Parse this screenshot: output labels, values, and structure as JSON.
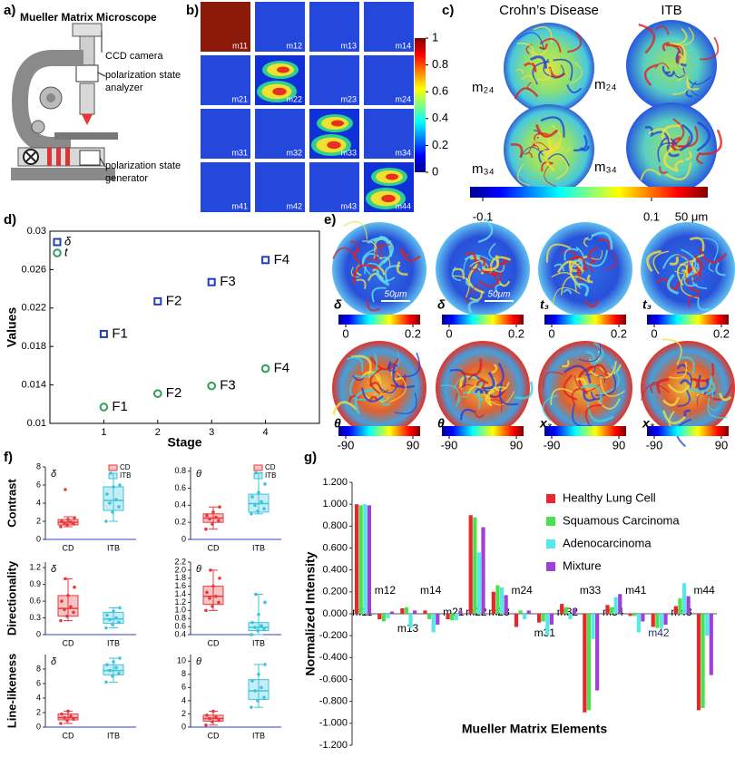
{
  "panel_labels": [
    "a)",
    "b)",
    "c)",
    "d)",
    "e)",
    "f)",
    "g)"
  ],
  "microscope": {
    "title": "Mueller Matrix Microscope",
    "labels": [
      "CCD camera",
      "polarization state",
      "analyzer",
      "polarization state",
      "generator"
    ]
  },
  "mueller_images": {
    "elements": [
      "m11",
      "m12",
      "m13",
      "m14",
      "m21",
      "m22",
      "m23",
      "m24",
      "m31",
      "m32",
      "m33",
      "m34",
      "m41",
      "m42",
      "m43",
      "m44"
    ],
    "colorbar_ticks": [
      0,
      0.2,
      0.4,
      0.6,
      0.8,
      1
    ]
  },
  "comparison": {
    "columns": [
      "Crohn’s Disease",
      "ITB"
    ],
    "rows": [
      "m₂₄",
      "m₃₄"
    ],
    "colorbar_ticks": [
      -0.1,
      0.1
    ],
    "scale_bar": "50 μm"
  },
  "parameter_maps": {
    "labels": [
      "δ",
      "δ",
      "t₃",
      "t₃",
      "θ",
      "θ",
      "x₃",
      "x₃"
    ],
    "colorbar_ticks": [
      [
        0,
        0.2
      ],
      [
        -90,
        90
      ]
    ],
    "scale_labels": [
      "50μm",
      "50μm"
    ]
  },
  "chart_data": [
    {
      "type": "scatter",
      "xlabel": "Stage",
      "ylabel": "Values",
      "x": [
        1,
        2,
        3,
        4
      ],
      "xlim": [
        0,
        5
      ],
      "xticks": [
        1,
        2,
        3,
        4
      ],
      "ylim": [
        0.01,
        0.03
      ],
      "yticks": [
        0.01,
        0.014,
        0.018,
        0.022,
        0.026,
        0.03
      ],
      "legend": "upper left",
      "series": [
        {
          "name": "δ",
          "color": "#1f3fbf",
          "marker": "square",
          "values": [
            0.0193,
            0.0227,
            0.0247,
            0.027
          ],
          "point_labels": [
            "F1",
            "F2",
            "F3",
            "F4"
          ]
        },
        {
          "name": "t",
          "color": "#2e9e5b",
          "marker": "circle",
          "values": [
            0.0117,
            0.0131,
            0.0139,
            0.0157
          ],
          "point_labels": [
            "F1",
            "F2",
            "F3",
            "F4"
          ]
        }
      ]
    },
    {
      "type": "box",
      "title": "δ",
      "ylabel": "Contrast",
      "categories": [
        "CD",
        "ITB"
      ],
      "legend": [
        "CD",
        "ITB"
      ],
      "colors": [
        "#e8383d",
        "#3cc3dd"
      ],
      "ylim": [
        0,
        8
      ],
      "yticks": [
        0,
        2,
        4,
        6,
        8
      ],
      "boxes": [
        {
          "whisker_low": 1.4,
          "q1": 1.6,
          "median": 1.9,
          "q3": 2.2,
          "whisker_high": 2.5,
          "points": [
            1.4,
            1.6,
            1.7,
            1.8,
            1.9,
            2.0,
            2.2,
            2.4,
            5.5
          ]
        },
        {
          "whisker_low": 2.0,
          "q1": 3.2,
          "median": 4.3,
          "q3": 5.8,
          "whisker_high": 7.3,
          "points": [
            2.0,
            3.0,
            3.6,
            4.0,
            4.4,
            5.0,
            5.8,
            6.0,
            7.3
          ]
        }
      ]
    },
    {
      "type": "box",
      "title": "θ",
      "categories": [
        "CD",
        "ITB"
      ],
      "legend": [
        "CD",
        "ITB"
      ],
      "colors": [
        "#e8383d",
        "#3cc3dd"
      ],
      "ylim": [
        0,
        0.85
      ],
      "yticks": [
        0,
        0.2,
        0.4,
        0.6,
        0.8
      ],
      "boxes": [
        {
          "whisker_low": 0.12,
          "q1": 0.2,
          "median": 0.25,
          "q3": 0.3,
          "whisker_high": 0.38,
          "points": [
            0.12,
            0.18,
            0.22,
            0.24,
            0.26,
            0.28,
            0.32,
            0.38
          ]
        },
        {
          "whisker_low": 0.3,
          "q1": 0.32,
          "median": 0.42,
          "q3": 0.53,
          "whisker_high": 0.78,
          "points": [
            0.3,
            0.33,
            0.36,
            0.4,
            0.44,
            0.5,
            0.55,
            0.65,
            0.78
          ]
        }
      ]
    },
    {
      "type": "box",
      "title": "δ",
      "ylabel": "Directionality",
      "categories": [
        "CD",
        "ITB"
      ],
      "colors": [
        "#e8383d",
        "#3cc3dd"
      ],
      "ylim": [
        0,
        1.3
      ],
      "yticks": [
        0,
        0.3,
        0.6,
        0.9,
        1.2
      ],
      "boxes": [
        {
          "whisker_low": 0.25,
          "q1": 0.33,
          "median": 0.47,
          "q3": 0.7,
          "whisker_high": 1.0,
          "points": [
            0.25,
            0.33,
            0.4,
            0.45,
            0.5,
            0.6,
            0.7,
            0.85,
            1.0
          ]
        },
        {
          "whisker_low": 0.12,
          "q1": 0.2,
          "median": 0.28,
          "q3": 0.4,
          "whisker_high": 0.48,
          "points": [
            0.12,
            0.18,
            0.22,
            0.27,
            0.3,
            0.35,
            0.42,
            0.48
          ]
        }
      ]
    },
    {
      "type": "box",
      "title": "θ",
      "categories": [
        "CD",
        "ITB"
      ],
      "colors": [
        "#e8383d",
        "#3cc3dd"
      ],
      "ylim": [
        0.4,
        2.2
      ],
      "yticks": [
        0.4,
        0.6,
        0.8,
        {
          "value": 1,
          "label": "1.0"
        },
        1.2,
        1.4,
        1.6,
        1.8,
        {
          "value": 2,
          "label": "2.0"
        },
        2.2
      ],
      "boxes": [
        {
          "whisker_low": 1.0,
          "q1": 1.15,
          "median": 1.35,
          "q3": 1.6,
          "whisker_high": 2.0,
          "points": [
            1.0,
            1.1,
            1.2,
            1.3,
            1.35,
            1.45,
            1.6,
            1.8,
            2.0
          ]
        },
        {
          "whisker_low": 0.4,
          "q1": 0.5,
          "median": 0.58,
          "q3": 0.7,
          "whisker_high": 1.4,
          "points": [
            0.4,
            0.5,
            0.55,
            0.58,
            0.62,
            0.7,
            0.9,
            1.2,
            1.4
          ]
        }
      ]
    },
    {
      "type": "box",
      "title": "δ",
      "ylabel": "Line-likeness",
      "categories": [
        "CD",
        "ITB"
      ],
      "colors": [
        "#e8383d",
        "#3cc3dd"
      ],
      "ylim": [
        0,
        10
      ],
      "yticks": [
        0,
        2,
        4,
        6,
        8
      ],
      "boxes": [
        {
          "whisker_low": 0.5,
          "q1": 1.0,
          "median": 1.3,
          "q3": 1.8,
          "whisker_high": 2.2,
          "points": [
            0.5,
            0.9,
            1.1,
            1.3,
            1.5,
            1.8,
            2.2
          ]
        },
        {
          "whisker_low": 6.2,
          "q1": 7.2,
          "median": 7.8,
          "q3": 8.6,
          "whisker_high": 9.5,
          "points": [
            6.2,
            7.0,
            7.4,
            7.8,
            8.2,
            8.6,
            9.0,
            9.5
          ]
        }
      ]
    },
    {
      "type": "box",
      "title": "θ",
      "categories": [
        "CD",
        "ITB"
      ],
      "colors": [
        "#e8383d",
        "#3cc3dd"
      ],
      "ylim": [
        0,
        11
      ],
      "yticks": [
        0,
        2,
        4,
        6,
        8,
        10
      ],
      "boxes": [
        {
          "whisker_low": 0.3,
          "q1": 0.9,
          "median": 1.3,
          "q3": 1.8,
          "whisker_high": 2.4,
          "points": [
            0.3,
            0.8,
            1.0,
            1.3,
            1.5,
            1.8,
            2.4
          ]
        },
        {
          "whisker_low": 3.0,
          "q1": 4.2,
          "median": 5.5,
          "q3": 7.2,
          "whisker_high": 9.5,
          "points": [
            3.0,
            4.0,
            4.5,
            5.5,
            6.0,
            7.0,
            8.0,
            9.5
          ]
        }
      ]
    },
    {
      "type": "bar",
      "ylabel": "Normalized Intensity",
      "xlabel": "Mueller Matrix Elements",
      "categories": [
        "m11",
        "m12",
        "m13",
        "m14",
        "m21",
        "m22",
        "m23",
        "m24",
        "m31",
        "m32",
        "m33",
        "m34",
        "m41",
        "m42",
        "m43",
        "m44"
      ],
      "ylim": [
        -1.2,
        1.2
      ],
      "yticks": [
        {
          "value": -1.2,
          "label": "-1.200"
        },
        {
          "value": -1,
          "label": "-1.000"
        },
        {
          "value": -0.8,
          "label": "-0.800"
        },
        {
          "value": -0.6,
          "label": "-0.600"
        },
        {
          "value": -0.4,
          "label": "-0.400"
        },
        {
          "value": -0.2,
          "label": "-0.200"
        },
        {
          "value": 0,
          "label": "0.000"
        },
        {
          "value": 0.2,
          "label": "0.200"
        },
        {
          "value": 0.4,
          "label": "0.400"
        },
        {
          "value": 0.6,
          "label": "0.600"
        },
        {
          "value": 0.8,
          "label": "0.800"
        },
        {
          "value": 1,
          "label": "1.000"
        },
        {
          "value": 1.2,
          "label": "1.200"
        }
      ],
      "legend": "upper right",
      "series": [
        {
          "name": "Healthy Lung Cell",
          "color": "#e8262b",
          "values": [
            1.0,
            -0.05,
            0.05,
            0.03,
            -0.05,
            0.9,
            0.2,
            -0.12,
            -0.08,
            0.09,
            -0.9,
            0.08,
            -0.02,
            -0.12,
            0.07,
            -0.88
          ]
        },
        {
          "name": "Squamous Carcinoma",
          "color": "#4ce04c",
          "values": [
            0.99,
            -0.07,
            0.06,
            -0.05,
            -0.06,
            0.88,
            0.26,
            0.03,
            -0.07,
            0.06,
            -0.88,
            0.06,
            -0.02,
            -0.13,
            0.14,
            -0.86
          ]
        },
        {
          "name": "Adenocarcinoma",
          "color": "#54e8e8",
          "values": [
            1.0,
            -0.04,
            -0.13,
            -0.17,
            -0.06,
            0.56,
            0.24,
            -0.05,
            -0.2,
            -0.05,
            -0.23,
            0.15,
            -0.17,
            -0.13,
            0.28,
            -0.2
          ]
        },
        {
          "name": "Mixture",
          "color": "#a040d8",
          "values": [
            0.99,
            0.02,
            0.03,
            -0.1,
            0.03,
            0.79,
            0.17,
            0.03,
            -0.1,
            0.04,
            -0.7,
            0.18,
            -0.07,
            -0.1,
            0.16,
            -0.56
          ]
        }
      ]
    }
  ]
}
